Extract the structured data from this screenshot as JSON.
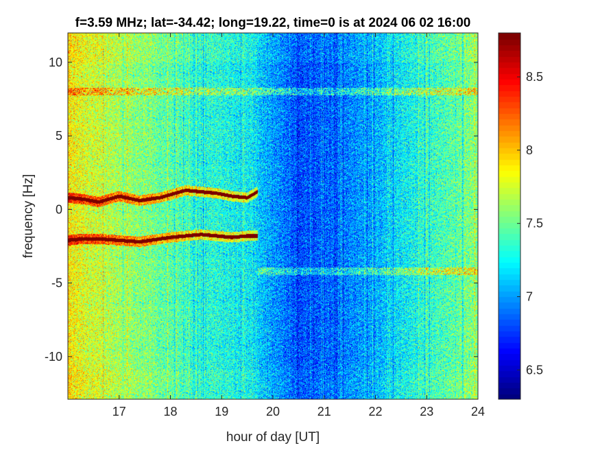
{
  "chart_data": {
    "type": "heatmap",
    "title": "f=3.59 MHz;  lat=-34.42; long=19.22, time=0 is at 2024 06 02 16:00",
    "xlabel": "hour of day [UT]",
    "ylabel": "frequency [Hz]",
    "xlim": [
      16,
      24
    ],
    "ylim": [
      -12.9,
      12
    ],
    "x_ticks": [
      17,
      18,
      19,
      20,
      21,
      22,
      23,
      24
    ],
    "y_ticks": [
      10,
      5,
      0,
      -5,
      -10
    ],
    "colorbar": {
      "range": [
        6.3,
        8.8
      ],
      "ticks": [
        6.5,
        7,
        7.5,
        8,
        8.5
      ],
      "colormap": "jet"
    },
    "background_level": {
      "hours": [
        16,
        16.5,
        17,
        17.5,
        18,
        18.5,
        19,
        19.5,
        20,
        20.5,
        21,
        21.5,
        22,
        22.5,
        23,
        23.5,
        24
      ],
      "values": [
        7.9,
        7.75,
        7.65,
        7.55,
        7.45,
        7.35,
        7.3,
        7.25,
        7.0,
        6.8,
        6.85,
        6.95,
        7.05,
        7.2,
        7.35,
        7.45,
        7.6
      ]
    },
    "traces": [
      {
        "x": [
          16,
          16.3,
          16.6,
          17,
          17.4,
          17.8,
          18,
          18.3,
          18.6,
          18.9,
          19.2,
          19.5,
          19.7
        ],
        "y": [
          0.8,
          0.7,
          0.5,
          0.9,
          0.6,
          0.8,
          1.0,
          1.3,
          1.2,
          1.1,
          0.9,
          0.8,
          1.2
        ]
      },
      {
        "x": [
          16,
          16.3,
          16.6,
          17,
          17.4,
          17.8,
          18,
          18.3,
          18.6,
          18.9,
          19.2,
          19.5,
          19.7
        ],
        "y": [
          -2.1,
          -2.0,
          -2.0,
          -2.1,
          -2.2,
          -2.0,
          -1.9,
          -1.8,
          -1.7,
          -1.8,
          -1.9,
          -1.8,
          -1.8
        ]
      }
    ],
    "horizontal_bands": [
      {
        "y": 8.0,
        "x_range": [
          16,
          24
        ]
      },
      {
        "y": -4.2,
        "x_range": [
          19.7,
          24
        ]
      }
    ]
  },
  "colors": {
    "axis": "#262626",
    "trace": "#7a0000"
  }
}
